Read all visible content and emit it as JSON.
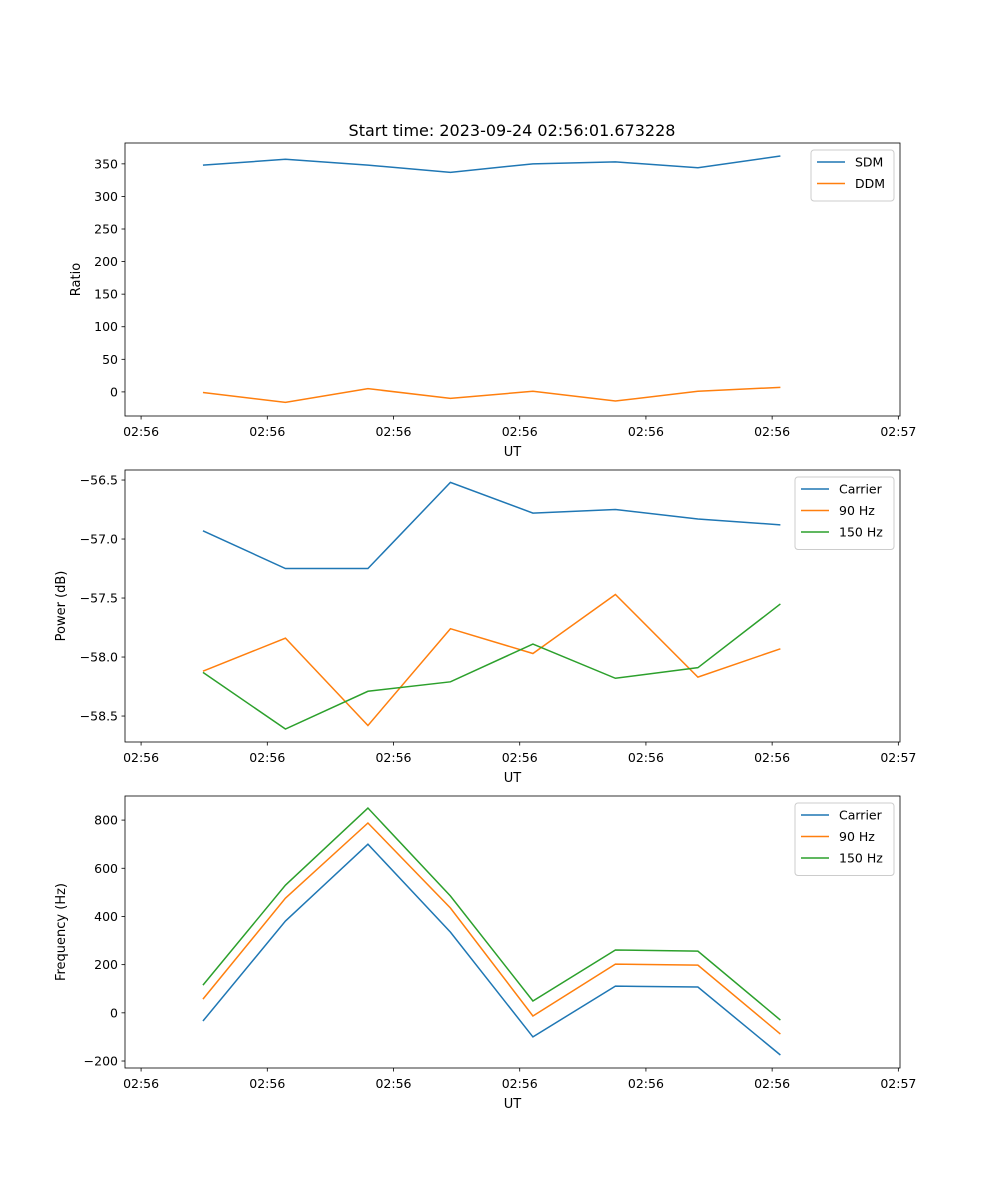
{
  "title": "Start time: 2023-09-24 02:56:01.673228",
  "chart_data": [
    {
      "type": "line",
      "xlabel": "UT",
      "ylabel": "Ratio",
      "x": [
        0,
        1,
        2,
        3,
        4,
        5,
        6,
        7
      ],
      "xlim": [
        -0.945,
        8.45
      ],
      "xticks": [
        -0.75,
        0.78,
        2.31,
        3.84,
        5.37,
        6.9,
        8.43
      ],
      "xtick_labels": [
        "02:56",
        "02:56",
        "02:56",
        "02:56",
        "02:56",
        "02:56",
        "02:57"
      ],
      "ylim": [
        -37,
        382
      ],
      "yticks": [
        0,
        50,
        100,
        150,
        200,
        250,
        300,
        350
      ],
      "ytick_labels": [
        "0",
        "50",
        "100",
        "150",
        "200",
        "250",
        "300",
        "350"
      ],
      "legend": "top-right",
      "series": [
        {
          "name": "SDM",
          "color": "#1f77b4",
          "values": [
            348,
            357,
            348,
            337,
            350,
            353,
            344,
            362
          ]
        },
        {
          "name": "DDM",
          "color": "#ff7f0e",
          "values": [
            -1,
            -16,
            5,
            -10,
            1,
            -14,
            1,
            7
          ]
        }
      ]
    },
    {
      "type": "line",
      "xlabel": "UT",
      "ylabel": "Power (dB)",
      "x": [
        0,
        1,
        2,
        3,
        4,
        5,
        6,
        7
      ],
      "xlim": [
        -0.945,
        8.45
      ],
      "xticks": [
        -0.75,
        0.78,
        2.31,
        3.84,
        5.37,
        6.9,
        8.43
      ],
      "xtick_labels": [
        "02:56",
        "02:56",
        "02:56",
        "02:56",
        "02:56",
        "02:56",
        "02:57"
      ],
      "ylim": [
        -58.72,
        -56.415
      ],
      "yticks": [
        -58.5,
        -58.0,
        -57.5,
        -57.0,
        -56.5
      ],
      "ytick_labels": [
        "−58.5",
        "−58.0",
        "−57.5",
        "−57.0",
        "−56.5"
      ],
      "legend": "top-right",
      "series": [
        {
          "name": "Carrier",
          "color": "#1f77b4",
          "values": [
            -56.93,
            -57.25,
            -57.25,
            -56.52,
            -56.78,
            -56.75,
            -56.83,
            -56.88
          ]
        },
        {
          "name": "90 Hz",
          "color": "#ff7f0e",
          "values": [
            -58.12,
            -57.84,
            -58.58,
            -57.76,
            -57.97,
            -57.47,
            -58.17,
            -57.93
          ]
        },
        {
          "name": "150 Hz",
          "color": "#2ca02c",
          "values": [
            -58.13,
            -58.61,
            -58.29,
            -58.21,
            -57.89,
            -58.18,
            -58.09,
            -57.55
          ]
        }
      ]
    },
    {
      "type": "line",
      "xlabel": "UT",
      "ylabel": "Frequency (Hz)",
      "x": [
        0,
        1,
        2,
        3,
        4,
        5,
        6,
        7
      ],
      "xlim": [
        -0.945,
        8.45
      ],
      "xticks": [
        -0.75,
        0.78,
        2.31,
        3.84,
        5.37,
        6.9,
        8.43
      ],
      "xtick_labels": [
        "02:56",
        "02:56",
        "02:56",
        "02:56",
        "02:56",
        "02:56",
        "02:57"
      ],
      "ylim": [
        -229,
        900
      ],
      "yticks": [
        -200,
        0,
        200,
        400,
        600,
        800
      ],
      "ytick_labels": [
        "−200",
        "0",
        "200",
        "400",
        "600",
        "800"
      ],
      "legend": "top-right",
      "series": [
        {
          "name": "Carrier",
          "color": "#1f77b4",
          "values": [
            -34,
            381,
            700,
            335,
            -100,
            111,
            107,
            -175
          ]
        },
        {
          "name": "90 Hz",
          "color": "#ff7f0e",
          "values": [
            57,
            476,
            788,
            435,
            -13,
            202,
            198,
            -88
          ]
        },
        {
          "name": "150 Hz",
          "color": "#2ca02c",
          "values": [
            115,
            530,
            850,
            485,
            49,
            261,
            256,
            -30
          ]
        }
      ]
    }
  ]
}
